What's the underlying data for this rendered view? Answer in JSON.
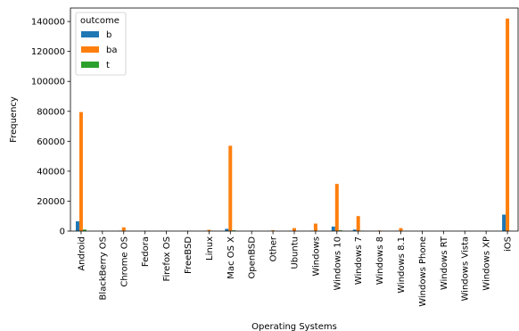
{
  "chart_data": {
    "type": "bar",
    "xlabel": "Operating Systems",
    "ylabel": "Frequency",
    "ylim": [
      0,
      149000
    ],
    "yticks": [
      0,
      20000,
      40000,
      60000,
      80000,
      100000,
      120000,
      140000
    ],
    "ytick_labels": [
      "0",
      "20000",
      "40000",
      "60000",
      "80000",
      "100000",
      "120000",
      "140000"
    ],
    "grid": false,
    "legend": {
      "title": "outcome",
      "placement": "upper left"
    },
    "categories": [
      "Android",
      "BlackBerry OS",
      "Chrome OS",
      "Fedora",
      "Firefox OS",
      "FreeBSD",
      "Linux",
      "Mac OS X",
      "OpenBSD",
      "Other",
      "Ubuntu",
      "Windows",
      "Windows 10",
      "Windows 7",
      "Windows 8",
      "Windows 8.1",
      "Windows Phone",
      "Windows RT",
      "Windows Vista",
      "Windows XP",
      "iOS"
    ],
    "series": [
      {
        "name": "b",
        "color": "#1f77b4",
        "values": [
          6500,
          0,
          200,
          0,
          0,
          0,
          100,
          1500,
          0,
          100,
          100,
          300,
          3000,
          1000,
          50,
          200,
          0,
          0,
          0,
          0,
          11000
        ]
      },
      {
        "name": "ba",
        "color": "#ff7f0e",
        "values": [
          79500,
          100,
          2500,
          200,
          100,
          100,
          800,
          57000,
          100,
          500,
          2000,
          5000,
          31500,
          10000,
          400,
          2000,
          100,
          100,
          100,
          100,
          142000
        ]
      },
      {
        "name": "t",
        "color": "#2ca02c",
        "values": [
          1000,
          0,
          0,
          0,
          0,
          0,
          0,
          500,
          0,
          0,
          0,
          0,
          500,
          200,
          0,
          0,
          0,
          0,
          0,
          0,
          0
        ]
      }
    ]
  }
}
